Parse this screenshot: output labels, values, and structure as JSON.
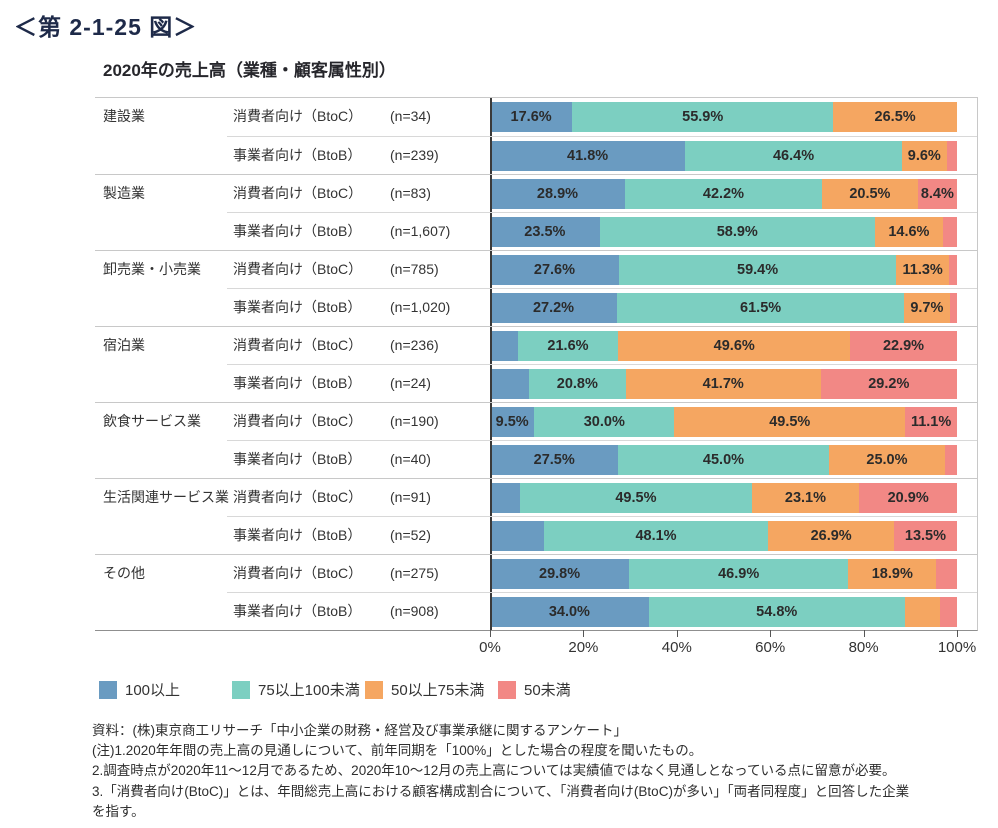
{
  "figure_label": "＜第 2-1-25 図＞",
  "chart_data": {
    "type": "bar",
    "orientation": "horizontal",
    "stacked": true,
    "title": "2020年の売上高（業種・顧客属性別）",
    "legend_position": "bottom",
    "legend": [
      {
        "label": "100以上",
        "color": "#6A9BC1"
      },
      {
        "label": "75以上100未満",
        "color": "#7CCFC1"
      },
      {
        "label": "50以上75未満",
        "color": "#F5A661"
      },
      {
        "label": "50未満",
        "color": "#F28885"
      }
    ],
    "x_axis": {
      "range": [
        0,
        100
      ],
      "ticks": [
        "0%",
        "20%",
        "40%",
        "60%",
        "80%",
        "100%"
      ]
    },
    "rows": [
      {
        "industry": "建設業",
        "group_start": true,
        "customer": "消費者向け（BtoC）",
        "n_label": "(n=34)",
        "values": [
          17.6,
          55.9,
          26.5,
          0.0
        ],
        "labels": [
          "17.6%",
          "55.9%",
          "26.5%",
          ""
        ]
      },
      {
        "industry": "",
        "group_start": false,
        "customer": "事業者向け（BtoB）",
        "n_label": "(n=239)",
        "values": [
          41.8,
          46.4,
          9.6,
          2.2
        ],
        "labels": [
          "41.8%",
          "46.4%",
          "9.6%",
          ""
        ]
      },
      {
        "industry": "製造業",
        "group_start": true,
        "customer": "消費者向け（BtoC）",
        "n_label": "(n=83)",
        "values": [
          28.9,
          42.2,
          20.5,
          8.4
        ],
        "labels": [
          "28.9%",
          "42.2%",
          "20.5%",
          "8.4%"
        ]
      },
      {
        "industry": "",
        "group_start": false,
        "customer": "事業者向け（BtoB）",
        "n_label": "(n=1,607)",
        "values": [
          23.5,
          58.9,
          14.6,
          3.0
        ],
        "labels": [
          "23.5%",
          "58.9%",
          "14.6%",
          ""
        ]
      },
      {
        "industry": "卸売業・小売業",
        "group_start": true,
        "customer": "消費者向け（BtoC）",
        "n_label": "(n=785)",
        "values": [
          27.6,
          59.4,
          11.3,
          1.7
        ],
        "labels": [
          "27.6%",
          "59.4%",
          "11.3%",
          ""
        ]
      },
      {
        "industry": "",
        "group_start": false,
        "customer": "事業者向け（BtoB）",
        "n_label": "(n=1,020)",
        "values": [
          27.2,
          61.5,
          9.7,
          1.6
        ],
        "labels": [
          "27.2%",
          "61.5%",
          "9.7%",
          ""
        ]
      },
      {
        "industry": "宿泊業",
        "group_start": true,
        "customer": "消費者向け（BtoC）",
        "n_label": "(n=236)",
        "values": [
          5.9,
          21.6,
          49.6,
          22.9
        ],
        "labels": [
          "",
          "21.6%",
          "49.6%",
          "22.9%"
        ]
      },
      {
        "industry": "",
        "group_start": false,
        "customer": "事業者向け（BtoB）",
        "n_label": "(n=24)",
        "values": [
          8.3,
          20.8,
          41.7,
          29.2
        ],
        "labels": [
          "",
          "20.8%",
          "41.7%",
          "29.2%"
        ]
      },
      {
        "industry": "飲食サービス業",
        "group_start": true,
        "customer": "消費者向け（BtoC）",
        "n_label": "(n=190)",
        "values": [
          9.5,
          30.0,
          49.5,
          11.1
        ],
        "labels": [
          "9.5%",
          "30.0%",
          "49.5%",
          "11.1%"
        ]
      },
      {
        "industry": "",
        "group_start": false,
        "customer": "事業者向け（BtoB）",
        "n_label": "(n=40)",
        "values": [
          27.5,
          45.0,
          25.0,
          2.5
        ],
        "labels": [
          "27.5%",
          "45.0%",
          "25.0%",
          ""
        ]
      },
      {
        "industry": "生活関連サービス業",
        "group_start": true,
        "customer": "消費者向け（BtoC）",
        "n_label": "(n=91)",
        "values": [
          6.5,
          49.5,
          23.1,
          20.9
        ],
        "labels": [
          "",
          "49.5%",
          "23.1%",
          "20.9%"
        ]
      },
      {
        "industry": "",
        "group_start": false,
        "customer": "事業者向け（BtoB）",
        "n_label": "(n=52)",
        "values": [
          11.5,
          48.1,
          26.9,
          13.5
        ],
        "labels": [
          "",
          "48.1%",
          "26.9%",
          "13.5%"
        ]
      },
      {
        "industry": "その他",
        "group_start": true,
        "customer": "消費者向け（BtoC）",
        "n_label": "(n=275)",
        "values": [
          29.8,
          46.9,
          18.9,
          4.4
        ],
        "labels": [
          "29.8%",
          "46.9%",
          "18.9%",
          ""
        ]
      },
      {
        "industry": "",
        "group_start": false,
        "customer": "事業者向け（BtoB）",
        "n_label": "(n=908)",
        "values": [
          34.0,
          54.8,
          7.5,
          3.7
        ],
        "labels": [
          "34.0%",
          "54.8%",
          "",
          ""
        ]
      }
    ]
  },
  "notes": {
    "lines": [
      "資料：(株)東京商工リサーチ「中小企業の財務・経営及び事業承継に関するアンケート」",
      "(注)1.2020年年間の売上高の見通しについて、前年同期を「100%」とした場合の程度を聞いたもの。",
      "2.調査時点が2020年11～12月であるため、2020年10～12月の売上高については実績値ではなく見通しとなっている点に留意が必要。",
      "3.「消費者向け(BtoC)」とは、年間総売上高における顧客構成割合について、「消費者向け(BtoC)が多い」「両者同程度」と回答した企業",
      "を指す。"
    ]
  }
}
